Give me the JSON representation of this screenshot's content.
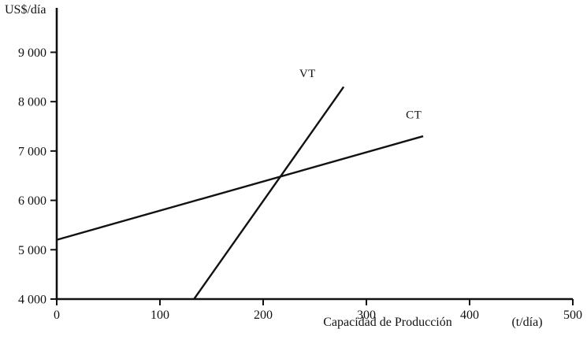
{
  "chart_data": {
    "type": "line",
    "title": "",
    "ylabel": "US$/día",
    "xlabel": "Capacidad de Producción",
    "x_unit_label": "(t/día)",
    "xlim": [
      0,
      500
    ],
    "ylim": [
      4000,
      9900
    ],
    "grid": false,
    "axis_color": "#111111",
    "x_ticks": [
      0,
      100,
      200,
      300,
      400,
      500
    ],
    "x_tick_labels": [
      "0",
      "100",
      "200",
      "300",
      "400",
      "500"
    ],
    "y_ticks": [
      4000,
      5000,
      6000,
      7000,
      8000,
      9000
    ],
    "y_tick_labels": [
      "4 000",
      "5 000",
      "6 000",
      "7 000",
      "8 000",
      "9 000"
    ],
    "series": [
      {
        "name": "VT",
        "color": "#111111",
        "points": [
          [
            133,
            4000
          ],
          [
            278,
            8300
          ]
        ],
        "label_at": [
          243,
          8500
        ]
      },
      {
        "name": "CT",
        "color": "#111111",
        "points": [
          [
            0,
            5200
          ],
          [
            355,
            7300
          ]
        ],
        "label_at": [
          346,
          7660
        ]
      }
    ],
    "notes": "Break-even style chart: VT (ingreso/valor total) crosses CT (costo total) near x≈215 t/día, y≈6 450 US$/día"
  }
}
